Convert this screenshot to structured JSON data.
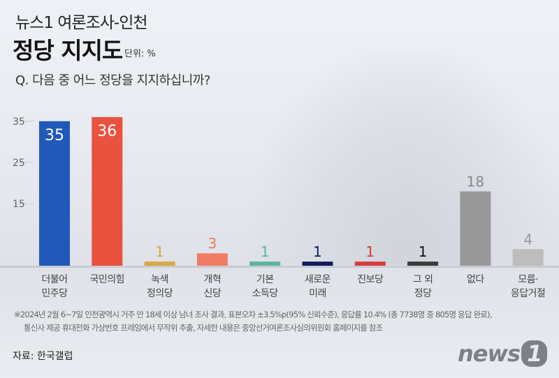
{
  "header": {
    "series_title": "뉴스1 여론조사-인천",
    "title": "정당 지지도",
    "unit": "단위: %",
    "question": "Q. 다음 중 어느 정당을 지지하십니까?"
  },
  "chart_data": {
    "type": "bar",
    "title": "정당 지지도",
    "ylabel": "%",
    "ylim": [
      0,
      36
    ],
    "yticks": [
      "15",
      "25",
      "35"
    ],
    "ytick_values": [
      15,
      25,
      35
    ],
    "categories": [
      [
        "더불어",
        "민주당"
      ],
      [
        "국민의힘"
      ],
      [
        "녹색",
        "정의당"
      ],
      [
        "개혁",
        "신당"
      ],
      [
        "기본",
        "소득당"
      ],
      [
        "새로운",
        "미래"
      ],
      [
        "진보당"
      ],
      [
        "그 외",
        "정당"
      ],
      [
        "없다"
      ],
      [
        "모름·",
        "응답거절"
      ]
    ],
    "values": [
      35,
      36,
      1,
      3,
      1,
      1,
      1,
      1,
      18,
      4
    ],
    "colors": [
      "#2059b9",
      "#e8523f",
      "#d9a843",
      "#ef7d64",
      "#5cb59b",
      "#101c5e",
      "#d93c3c",
      "#3b3b3b",
      "#999999",
      "#bdbdbd"
    ],
    "label_colors": [
      "#ffffff",
      "#ffffff",
      "#d9a843",
      "#e87a62",
      "#5cb59b",
      "#101c5e",
      "#d93c3c",
      "#111111",
      "#888888",
      "#999999"
    ]
  },
  "footnote": [
    "※2024년 2월 6~7일 인천광역시 거주 만 18세 이상 남녀 조사 결과, 표본오차 ±3.5%p(95% 신뢰수준), 응답률 10.4% (총 7738명 중 805명 응답 완료),",
    "통신사 제공 휴대전화 가상번호 프레임에서 무작위 추출, 자세한 내용은 중앙선거여론조사심의위원회 홈페이지를 참조"
  ],
  "source": "자료: 한국갤럽",
  "logo": {
    "text": "news",
    "mark": "1"
  }
}
